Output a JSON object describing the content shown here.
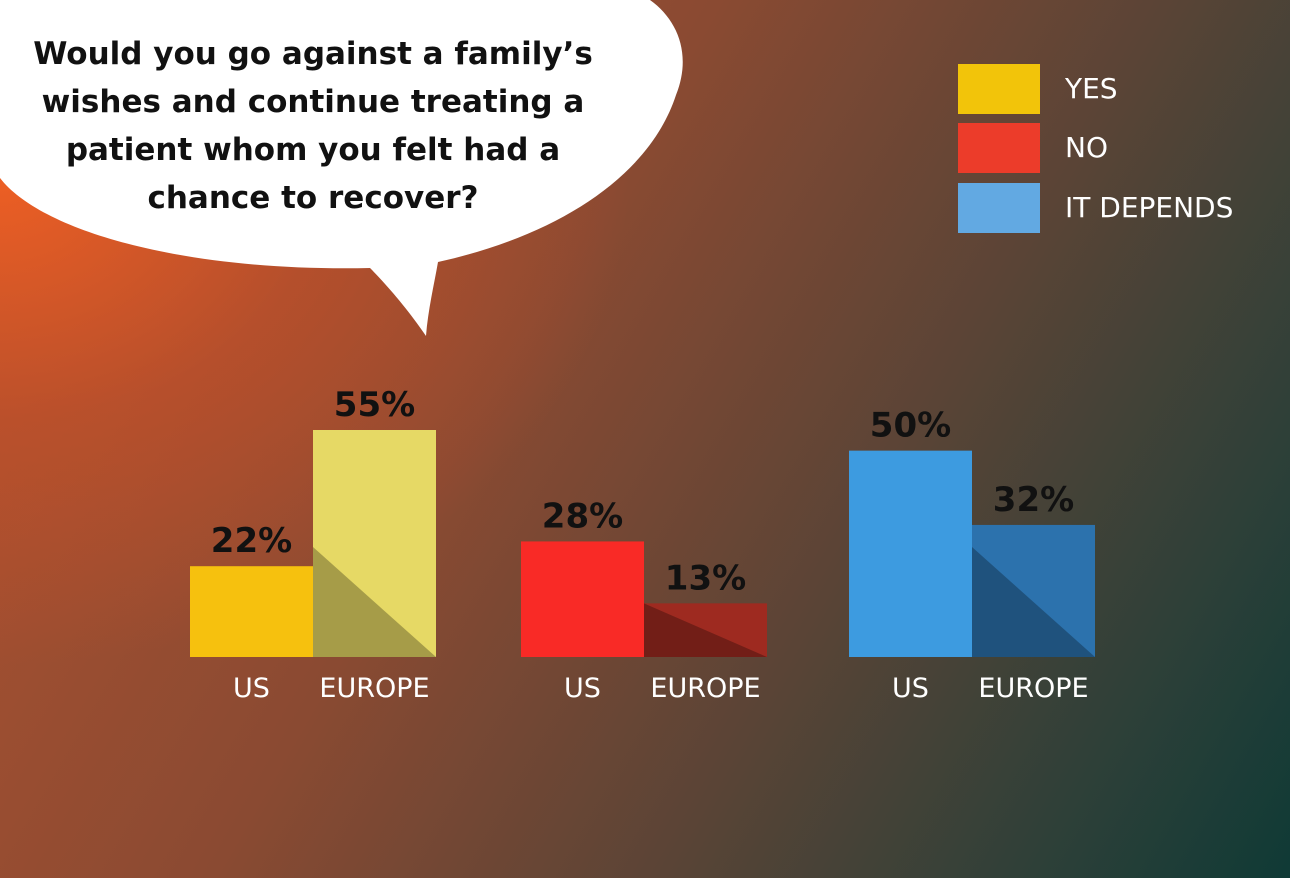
{
  "question": "Would you go against a family’s\nwishes and continue treating a\npatient whom you felt had a\nchance to recover?",
  "legend": [
    {
      "label": "YES",
      "color": "#f2c40a"
    },
    {
      "label": "NO",
      "color": "#ec3c2a"
    },
    {
      "label": "IT DEPENDS",
      "color": "#62a9e2"
    }
  ],
  "chart_data": {
    "type": "bar",
    "title": "Would you go against a family’s wishes and continue treating a patient whom you felt had a chance to recover?",
    "xlabel": "",
    "ylabel": "",
    "ylim": [
      0,
      100
    ],
    "grid": false,
    "legend_position": "top-right",
    "groups": [
      {
        "name": "YES",
        "bars": [
          {
            "category": "US",
            "value": 22,
            "label": "22%",
            "color": "#f6c10e"
          },
          {
            "category": "EUROPE",
            "value": 55,
            "label": "55%",
            "color": "#e6d965"
          }
        ]
      },
      {
        "name": "NO",
        "bars": [
          {
            "category": "US",
            "value": 28,
            "label": "28%",
            "color": "#f92a26"
          },
          {
            "category": "EUROPE",
            "value": 13,
            "label": "13%",
            "color": "#9e2a20"
          }
        ]
      },
      {
        "name": "IT DEPENDS",
        "bars": [
          {
            "category": "US",
            "value": 50,
            "label": "50%",
            "color": "#3d9be0"
          },
          {
            "category": "EUROPE",
            "value": 32,
            "label": "32%",
            "color": "#2c72ad"
          }
        ]
      }
    ]
  }
}
